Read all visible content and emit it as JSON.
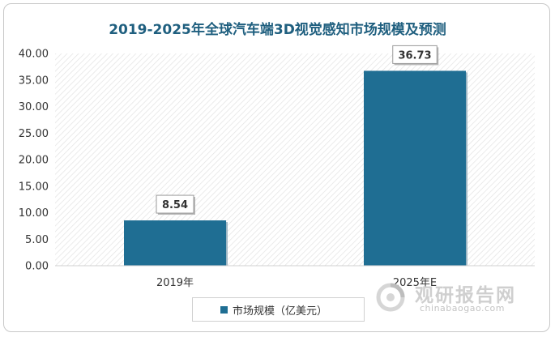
{
  "chart_data": {
    "type": "bar",
    "title": "2019-2025年全球汽车端3D视觉感知市场规模及预测",
    "categories": [
      "2019年",
      "2025年E"
    ],
    "series": [
      {
        "name": "市场规模（亿美元）",
        "values": [
          8.54,
          36.73
        ]
      }
    ],
    "data_labels": [
      "8.54",
      "36.73"
    ],
    "ylim": [
      0,
      40
    ],
    "yticks": [
      "0.00",
      "5.00",
      "10.00",
      "15.00",
      "20.00",
      "25.00",
      "30.00",
      "35.00",
      "40.00"
    ],
    "grid": false,
    "legend_position": "bottom",
    "bar_color": "#1f6e93"
  },
  "watermark": {
    "cn": "观研报告网",
    "en": "chinabaogao.com"
  }
}
